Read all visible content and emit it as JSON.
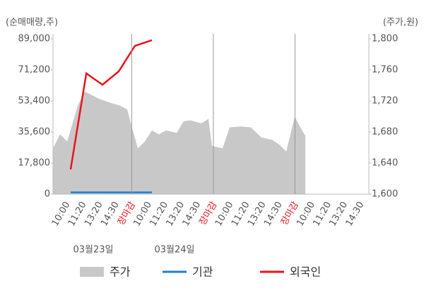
{
  "chart_data": {
    "type": "combo",
    "y_label": "(순매매량,주)",
    "y2_label": "(주가,원)",
    "categories": [
      "10:00",
      "11:20",
      "13:20",
      "14:30",
      "장마감",
      "10:00",
      "11:20",
      "13:20",
      "14:30",
      "장마감",
      "10:00",
      "11:20",
      "13:20",
      "14:30",
      "장마감",
      "10:00",
      "11:20",
      "13:20",
      "14:30"
    ],
    "xlim": [
      -0.65,
      18.7
    ],
    "date_labels": [
      "03월23일",
      "03월24일"
    ],
    "ylim": [
      0,
      89000
    ],
    "yticks": [
      0,
      {
        "value": 17800,
        "label": "17,800"
      },
      {
        "value": 35600,
        "label": "35,600"
      },
      {
        "value": 53400,
        "label": "53,400"
      },
      {
        "value": 71200,
        "label": "71,200"
      },
      {
        "value": 89000,
        "label": "89,000"
      }
    ],
    "y2lim": [
      1600,
      1800
    ],
    "y2ticks": [
      {
        "value": 1600,
        "label": "1,600"
      },
      {
        "value": 1640,
        "label": "1,640"
      },
      {
        "value": 1680,
        "label": "1,680"
      },
      {
        "value": 1720,
        "label": "1,720"
      },
      {
        "value": 1760,
        "label": "1,760"
      },
      {
        "value": 1800,
        "label": "1,800"
      }
    ],
    "series": [
      {
        "name": "주가",
        "type": "area",
        "axis": "y2",
        "color": "#c8c8c8",
        "x": [
          -0.65,
          -0.22,
          0.22,
          0.87,
          1.3,
          2.16,
          2.81,
          3.46,
          3.9,
          4.24,
          4.55,
          4.98,
          5.41,
          5.84,
          6.28,
          6.93,
          7.36,
          7.79,
          8.44,
          8.87,
          9.09,
          9.74,
          10.17,
          10.82,
          11.47,
          12.12,
          12.77,
          13.2,
          13.64,
          14.16,
          14.5,
          14.81
        ],
        "values": [
          1659,
          1677,
          1668,
          1714,
          1732,
          1723,
          1718,
          1714,
          1709,
          1682,
          1659,
          1668,
          1682,
          1677,
          1682,
          1679,
          1694,
          1695,
          1691,
          1697,
          1662,
          1659,
          1686,
          1687,
          1686,
          1673,
          1670,
          1664,
          1655,
          1700,
          1686,
          1675
        ]
      },
      {
        "name": "기관",
        "type": "line",
        "axis": "y",
        "color": "#1a7fd6",
        "x": [
          0.43,
          1.39,
          2.38,
          3.38,
          4.37,
          5.41
        ],
        "values": [
          1000,
          1000,
          1000,
          1000,
          1000,
          1000
        ]
      },
      {
        "name": "외국인",
        "type": "line",
        "axis": "y",
        "color": "#e8141c",
        "x": [
          0.43,
          1.39,
          2.38,
          3.38,
          4.37,
          5.41
        ],
        "values": [
          14200,
          69200,
          62700,
          70400,
          85000,
          88200
        ]
      }
    ]
  }
}
